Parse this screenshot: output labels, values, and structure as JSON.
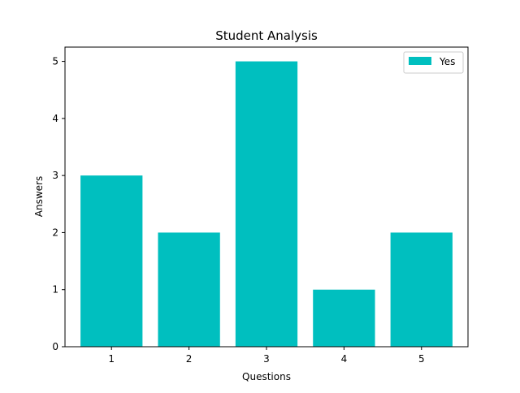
{
  "chart_data": {
    "type": "bar",
    "title": "Student Analysis",
    "xlabel": "Questions",
    "ylabel": "Answers",
    "categories": [
      "1",
      "2",
      "3",
      "4",
      "5"
    ],
    "series": [
      {
        "name": "Yes",
        "values": [
          3,
          2,
          5,
          1,
          2
        ],
        "color": "#00bfbf"
      }
    ],
    "ylim": [
      0,
      5.25
    ],
    "yticks": [
      0,
      1,
      2,
      3,
      4,
      5
    ],
    "grid": false,
    "legend": "top-right"
  }
}
